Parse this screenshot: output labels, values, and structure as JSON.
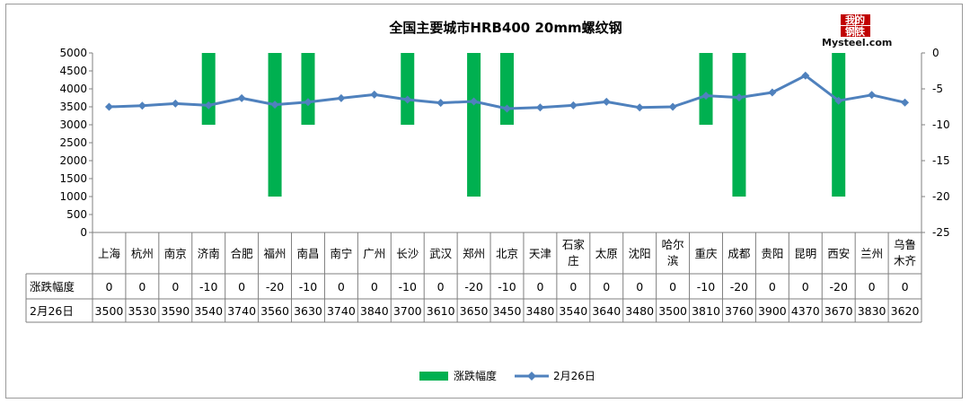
{
  "chart_data": {
    "type": "bar",
    "title": "全国主要城市HRB400 20mm螺纹钢",
    "categories": [
      "上海",
      "杭州",
      "南京",
      "济南",
      "合肥",
      "福州",
      "南昌",
      "南宁",
      "广州",
      "长沙",
      "武汉",
      "郑州",
      "北京",
      "天津",
      "石家庄",
      "太原",
      "沈阳",
      "哈尔滨",
      "重庆",
      "成都",
      "贵阳",
      "昆明",
      "西安",
      "兰州",
      "乌鲁木齐"
    ],
    "category_lines": [
      [
        "上海"
      ],
      [
        "杭州"
      ],
      [
        "南京"
      ],
      [
        "济南"
      ],
      [
        "合肥"
      ],
      [
        "福州"
      ],
      [
        "南昌"
      ],
      [
        "南宁"
      ],
      [
        "广州"
      ],
      [
        "长沙"
      ],
      [
        "武汉"
      ],
      [
        "郑州"
      ],
      [
        "北京"
      ],
      [
        "天津"
      ],
      [
        "石家",
        "庄"
      ],
      [
        "太原"
      ],
      [
        "沈阳"
      ],
      [
        "哈尔",
        "滨"
      ],
      [
        "重庆"
      ],
      [
        "成都"
      ],
      [
        "贵阳"
      ],
      [
        "昆明"
      ],
      [
        "西安"
      ],
      [
        "兰州"
      ],
      [
        "乌鲁",
        "木齐"
      ]
    ],
    "series": [
      {
        "name": "涨跌幅度",
        "type": "bar",
        "axis": "right",
        "color": "#00b050",
        "values": [
          0,
          0,
          0,
          -10,
          0,
          -20,
          -10,
          0,
          0,
          -10,
          0,
          -20,
          -10,
          0,
          0,
          0,
          0,
          0,
          -10,
          -20,
          0,
          0,
          -20,
          0,
          0
        ]
      },
      {
        "name": "2月26日",
        "type": "line",
        "axis": "left",
        "color": "#4f81bd",
        "values": [
          3500,
          3530,
          3590,
          3540,
          3740,
          3560,
          3630,
          3740,
          3840,
          3700,
          3610,
          3650,
          3450,
          3480,
          3540,
          3640,
          3480,
          3500,
          3810,
          3760,
          3900,
          4370,
          3670,
          3830,
          3620
        ]
      }
    ],
    "y_left": {
      "min": 0,
      "max": 5000,
      "step": 500,
      "tick_labels": [
        "0",
        "500",
        "1000",
        "1500",
        "2000",
        "2500",
        "3000",
        "3500",
        "4000",
        "4500",
        "5000"
      ]
    },
    "y_right": {
      "min": -25,
      "max": 0,
      "step": 5,
      "tick_labels": [
        "-25",
        "-20",
        "-15",
        "-10",
        "-5",
        "0"
      ]
    },
    "grid": false,
    "legend_position": "bottom",
    "table_rows": [
      {
        "label": "涨跌幅度",
        "series": 0,
        "cells": [
          "0",
          "0",
          "0",
          "-10",
          "0",
          "-20",
          "-10",
          "0",
          "0",
          "-10",
          "0",
          "-20",
          "-10",
          "0",
          "0",
          "0",
          "0",
          "0",
          "-10",
          "-20",
          "0",
          "0",
          "-20",
          "0",
          "0"
        ]
      },
      {
        "label": "2月26日",
        "series": 1,
        "cells": [
          "3500",
          "3530",
          "3590",
          "3540",
          "3740",
          "3560",
          "3630",
          "3740",
          "3840",
          "3700",
          "3610",
          "3650",
          "3450",
          "3480",
          "3540",
          "3640",
          "3480",
          "3500",
          "3810",
          "3760",
          "3900",
          "4370",
          "3670",
          "3830",
          "3620"
        ]
      }
    ]
  },
  "logo": {
    "cn_top": "我的",
    "cn_bottom": "钢铁",
    "en": "Mysteel.com"
  }
}
